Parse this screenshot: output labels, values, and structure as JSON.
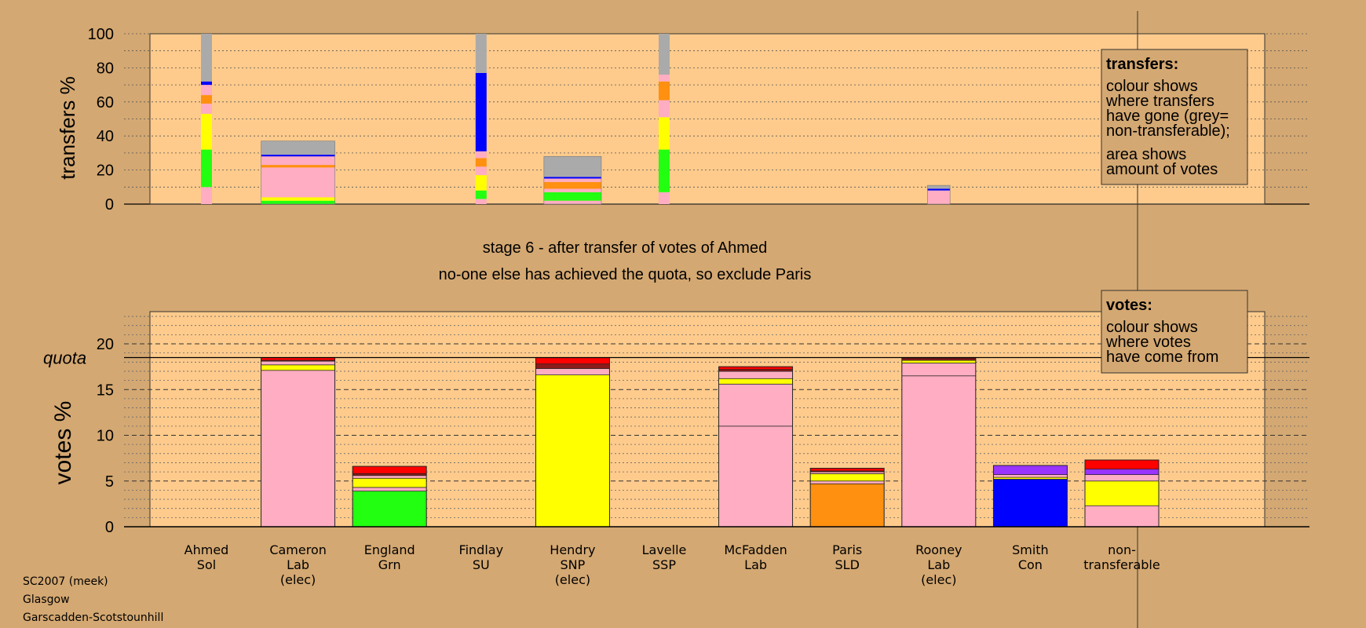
{
  "colors": {
    "background": "#d4a872",
    "plot_area": "#fecb8c",
    "Lab": "#ffadc2",
    "SNP": "#ffff00",
    "Grn": "#22ff11",
    "SLD": "#ff9010",
    "Con": "#0000ff",
    "Sol": "#ff0000",
    "SSP": "#ff0000",
    "SU": "#8b1a1a",
    "Other": "#9933ff",
    "nontransferable": "#aaaaaa"
  },
  "stage_text": {
    "line1": "stage 6 - after transfer of votes of Ahmed",
    "line2": "no-one else has achieved the quota, so exclude Paris"
  },
  "legend_transfers": {
    "title": "transfers:",
    "lines_a": [
      "colour shows",
      "where transfers",
      "have gone (grey=",
      "non-transferable);"
    ],
    "lines_b": [
      "area shows",
      "amount of votes"
    ]
  },
  "legend_votes": {
    "title": "votes:",
    "lines": [
      "colour shows",
      "where votes",
      "have come from"
    ]
  },
  "footer": [
    "SC2007 (meek)",
    "Glasgow",
    "Garscadden-Scotstounhill"
  ],
  "chart_data": [
    {
      "type": "bar",
      "title": "transfers",
      "ylabel": "transfers %",
      "ylim": [
        0,
        100
      ],
      "yticks": [
        0,
        20,
        40,
        60,
        80,
        100
      ],
      "grid": true,
      "bars": [
        {
          "slot": 0,
          "width": "thin",
          "segments": [
            {
              "party": "Lab",
              "value": 10
            },
            {
              "party": "Grn",
              "value": 22
            },
            {
              "party": "SNP",
              "value": 21
            },
            {
              "party": "Lab",
              "value": 6
            },
            {
              "party": "SLD",
              "value": 5
            },
            {
              "party": "Lab",
              "value": 6
            },
            {
              "party": "Con",
              "value": 2
            },
            {
              "party": "nontransferable",
              "value": 28
            }
          ]
        },
        {
          "slot": 1,
          "width": 36,
          "segments": [
            {
              "party": "Grn",
              "value": 2
            },
            {
              "party": "SNP",
              "value": 2
            },
            {
              "party": "Lab",
              "value": 17.5
            },
            {
              "party": "SLD",
              "value": 1.5
            },
            {
              "party": "Lab",
              "value": 5
            },
            {
              "party": "Con",
              "value": 1
            },
            {
              "party": "nontransferable",
              "value": 8
            }
          ]
        },
        {
          "slot": 3,
          "width": "thin",
          "segments": [
            {
              "party": "Lab",
              "value": 3
            },
            {
              "party": "Grn",
              "value": 5
            },
            {
              "party": "SNP",
              "value": 9
            },
            {
              "party": "Lab",
              "value": 5
            },
            {
              "party": "SLD",
              "value": 5
            },
            {
              "party": "Lab",
              "value": 4
            },
            {
              "party": "Con",
              "value": 46
            },
            {
              "party": "nontransferable",
              "value": 23
            }
          ]
        },
        {
          "slot": 4,
          "width": 28,
          "segments": [
            {
              "party": "Lab",
              "value": 2
            },
            {
              "party": "Grn",
              "value": 5
            },
            {
              "party": "Lab",
              "value": 2
            },
            {
              "party": "SLD",
              "value": 4
            },
            {
              "party": "Lab",
              "value": 2
            },
            {
              "party": "Con",
              "value": 1
            },
            {
              "party": "nontransferable",
              "value": 12
            }
          ]
        },
        {
          "slot": 5,
          "width": "thin",
          "segments": [
            {
              "party": "Lab",
              "value": 7
            },
            {
              "party": "Grn",
              "value": 25
            },
            {
              "party": "SNP",
              "value": 19
            },
            {
              "party": "Lab",
              "value": 10
            },
            {
              "party": "SLD",
              "value": 11
            },
            {
              "party": "Lab",
              "value": 4
            },
            {
              "party": "nontransferable",
              "value": 24
            }
          ]
        },
        {
          "slot": 8,
          "width": 11,
          "segments": [
            {
              "party": "Lab",
              "value": 8
            },
            {
              "party": "Con",
              "value": 1
            },
            {
              "party": "nontransferable",
              "value": 2
            }
          ]
        }
      ]
    },
    {
      "type": "bar",
      "title": "votes",
      "ylabel": "votes %",
      "ylim": [
        0,
        23
      ],
      "yticks": [
        0,
        5,
        10,
        15,
        20
      ],
      "quota": 18.5,
      "quota_label": "quota",
      "grid": true,
      "categories": [
        {
          "name": "Ahmed",
          "party": "Sol",
          "note": ""
        },
        {
          "name": "Cameron",
          "party": "Lab",
          "note": "(elec)"
        },
        {
          "name": "England",
          "party": "Grn",
          "note": ""
        },
        {
          "name": "Findlay",
          "party": "SU",
          "note": ""
        },
        {
          "name": "Hendry",
          "party": "SNP",
          "note": "(elec)"
        },
        {
          "name": "Lavelle",
          "party": "SSP",
          "note": ""
        },
        {
          "name": "McFadden",
          "party": "Lab",
          "note": ""
        },
        {
          "name": "Paris",
          "party": "SLD",
          "note": ""
        },
        {
          "name": "Rooney",
          "party": "Lab",
          "note": "(elec)"
        },
        {
          "name": "Smith",
          "party": "Con",
          "note": ""
        },
        {
          "name": "non-",
          "party": "transferable",
          "note": ""
        }
      ],
      "bars": [
        {
          "slot": 0,
          "segments": []
        },
        {
          "slot": 1,
          "segments": [
            {
              "party": "Lab",
              "value": 17.1
            },
            {
              "party": "SNP",
              "value": 0.6
            },
            {
              "party": "Lab",
              "value": 0.4
            },
            {
              "party": "SU",
              "value": 0.1
            },
            {
              "party": "Sol",
              "value": 0.3
            }
          ]
        },
        {
          "slot": 2,
          "segments": [
            {
              "party": "Grn",
              "value": 3.9
            },
            {
              "party": "Lab",
              "value": 0.4
            },
            {
              "party": "SNP",
              "value": 1.0
            },
            {
              "party": "Lab",
              "value": 0.3
            },
            {
              "party": "SU",
              "value": 0.2
            },
            {
              "party": "Sol",
              "value": 0.8
            }
          ]
        },
        {
          "slot": 3,
          "segments": []
        },
        {
          "slot": 4,
          "segments": [
            {
              "party": "SNP",
              "value": 16.6
            },
            {
              "party": "Lab",
              "value": 0.7
            },
            {
              "party": "SU",
              "value": 0.5
            },
            {
              "party": "Sol",
              "value": 0.7
            }
          ]
        },
        {
          "slot": 5,
          "segments": []
        },
        {
          "slot": 6,
          "segments": [
            {
              "party": "Lab",
              "value": 11.0
            },
            {
              "party": "Lab",
              "value": 4.6
            },
            {
              "party": "SNP",
              "value": 0.6
            },
            {
              "party": "Lab",
              "value": 0.8
            },
            {
              "party": "SU",
              "value": 0.2
            },
            {
              "party": "Sol",
              "value": 0.3
            }
          ]
        },
        {
          "slot": 7,
          "segments": [
            {
              "party": "SLD",
              "value": 4.7
            },
            {
              "party": "Lab",
              "value": 0.3
            },
            {
              "party": "SNP",
              "value": 0.8
            },
            {
              "party": "Lab",
              "value": 0.2
            },
            {
              "party": "SU",
              "value": 0.1
            },
            {
              "party": "Sol",
              "value": 0.3
            }
          ]
        },
        {
          "slot": 8,
          "segments": [
            {
              "party": "Lab",
              "value": 16.5
            },
            {
              "party": "Lab",
              "value": 1.4
            },
            {
              "party": "SNP",
              "value": 0.3
            },
            {
              "party": "SU",
              "value": 0.2
            },
            {
              "party": "Sol",
              "value": 0.1
            }
          ]
        },
        {
          "slot": 9,
          "segments": [
            {
              "party": "Con",
              "value": 5.2
            },
            {
              "party": "SNP",
              "value": 0.2
            },
            {
              "party": "Lab",
              "value": 0.3
            },
            {
              "party": "Other",
              "value": 1.0
            }
          ]
        },
        {
          "slot": 10,
          "segments": [
            {
              "party": "Lab",
              "value": 2.3
            },
            {
              "party": "SNP",
              "value": 2.7
            },
            {
              "party": "Lab",
              "value": 0.7
            },
            {
              "party": "Other",
              "value": 0.6
            },
            {
              "party": "Sol",
              "value": 1.0
            }
          ]
        }
      ]
    }
  ]
}
